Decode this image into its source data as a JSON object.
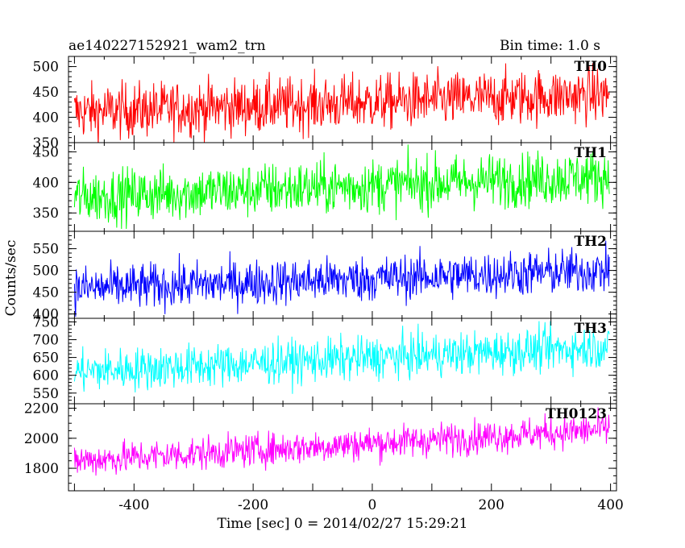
{
  "header": {
    "left_title": "ae140227152921_wam2_trn",
    "right_title": "Bin time: 1.0 s"
  },
  "axes": {
    "ylabel": "Counts/sec",
    "xlabel": "Time [sec] 0 = 2014/02/27 15:29:21"
  },
  "chart_data": {
    "type": "line",
    "x": {
      "range": [
        -510,
        410
      ],
      "ticks": [
        -400,
        -200,
        0,
        200,
        400
      ],
      "minor_step": 50,
      "data_start": -500,
      "data_end": 398,
      "bin": 1.0
    },
    "series": [
      {
        "name": "TH0",
        "color": "#ff0000",
        "ylim": [
          350,
          520
        ],
        "ticks": [
          350,
          400,
          450,
          500
        ],
        "minor_step": 10,
        "mean_start": 410,
        "mean_end": 445,
        "noise": 27
      },
      {
        "name": "TH1",
        "color": "#00ff00",
        "ylim": [
          320,
          465
        ],
        "ticks": [
          350,
          400,
          450
        ],
        "minor_step": 10,
        "mean_start": 376,
        "mean_end": 410,
        "noise": 22
      },
      {
        "name": "TH2",
        "color": "#0000ff",
        "ylim": [
          390,
          590
        ],
        "ticks": [
          400,
          450,
          500,
          550
        ],
        "minor_step": 10,
        "mean_start": 458,
        "mean_end": 500,
        "noise": 26
      },
      {
        "name": "TH3",
        "color": "#00ffff",
        "ylim": [
          520,
          760
        ],
        "ticks": [
          550,
          600,
          650,
          700,
          750
        ],
        "minor_step": 10,
        "mean_start": 610,
        "mean_end": 680,
        "noise": 30
      },
      {
        "name": "TH0123",
        "color": "#ff00ff",
        "ylim": [
          1650,
          2230
        ],
        "ticks": [
          1800,
          2000,
          2200
        ],
        "minor_step": 50,
        "mean_start": 1850,
        "mean_end": 2060,
        "noise": 55
      }
    ]
  }
}
